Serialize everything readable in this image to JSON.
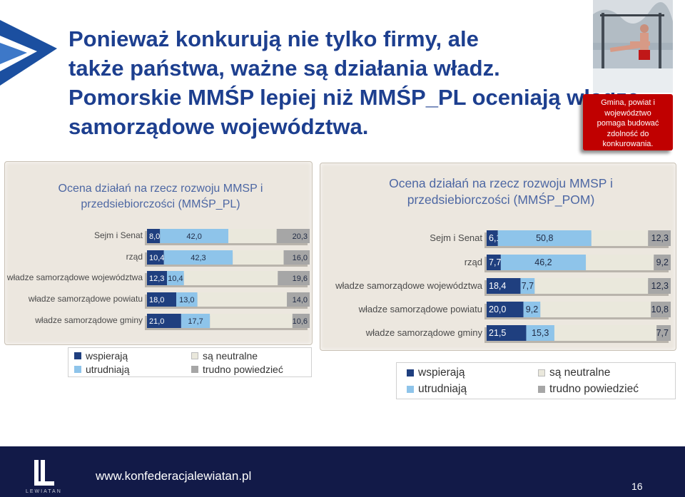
{
  "title_lines": [
    "Ponieważ konkurują nie tylko firmy, ale",
    "także państwa, ważne są działania władz.",
    "Pomorskie MMŚP lepiej niż MMŚP_PL oceniają władze",
    "samorządowe województwa."
  ],
  "note_lines": [
    "Gmina, powiat i",
    "województwo",
    "pomaga budować",
    "zdolność do",
    "konkurowania."
  ],
  "colors": {
    "title": "#1d3f8f",
    "wspieraja": "#1f3f7f",
    "utrudniaja": "#8ec4ea",
    "neutralne": "#eae8dc",
    "trudno": "#a6a6a6",
    "note_bg": "#c00000",
    "footer_bg": "#121a48"
  },
  "chart_data": [
    {
      "type": "bar",
      "stacked": true,
      "orientation": "horizontal",
      "title": "Ocena działań na rzecz rozwoju MMSP i przedsiebiorczości (MMŚP_PL)",
      "categories": [
        "Sejm i Senat",
        "rząd",
        "władze samorządowe województwa",
        "władze samorządowe powiatu",
        "władze samorządowe gminy"
      ],
      "series": [
        {
          "name": "wspierają",
          "values": [
            8.0,
            10.4,
            12.3,
            18.0,
            21.0
          ],
          "labels": [
            "8,0",
            "10,4",
            "12,3",
            "18,0",
            "21,0"
          ]
        },
        {
          "name": "utrudniają",
          "values": [
            42.0,
            42.3,
            10.4,
            13.0,
            17.7
          ],
          "labels": [
            "42,0",
            "42,3",
            "10,4",
            "13,0",
            "17,7"
          ]
        },
        {
          "name": "są neutralne",
          "values": [
            29.7,
            31.3,
            57.7,
            55.0,
            50.7
          ],
          "labels": [
            "",
            "",
            "",
            "",
            ""
          ]
        },
        {
          "name": "trudno powiedzieć",
          "values": [
            20.3,
            16.0,
            19.6,
            14.0,
            10.6
          ],
          "labels": [
            "20,3",
            "16,0",
            "19,6",
            "14,0",
            "10,6"
          ]
        }
      ],
      "legend": [
        "wspierają",
        "utrudniają",
        "są neutralne",
        "trudno powiedzieć"
      ],
      "legend_position": "bottom"
    },
    {
      "type": "bar",
      "stacked": true,
      "orientation": "horizontal",
      "title": "Ocena działań na rzecz rozwoju MMSP i przedsiebiorczości (MMŚP_POM)",
      "categories": [
        "Sejm i Senat",
        "rząd",
        "władze samorządowe województwa",
        "władze samorządowe powiatu",
        "władze samorządowe gminy"
      ],
      "series": [
        {
          "name": "wspierają",
          "values": [
            6.1,
            7.7,
            18.4,
            20.0,
            21.5
          ],
          "labels": [
            "6,1",
            "7,7",
            "18,4",
            "20,0",
            "21,5"
          ]
        },
        {
          "name": "utrudniają",
          "values": [
            50.8,
            46.2,
            7.7,
            9.2,
            15.3
          ],
          "labels": [
            "50,8",
            "46,2",
            "7,7",
            "9,2",
            "15,3"
          ]
        },
        {
          "name": "są neutralne",
          "values": [
            30.8,
            36.9,
            61.6,
            60.0,
            55.5
          ],
          "labels": [
            "",
            "",
            "",
            "",
            ""
          ]
        },
        {
          "name": "trudno powiedzieć",
          "values": [
            12.3,
            9.2,
            12.3,
            10.8,
            7.7
          ],
          "labels": [
            "12,3",
            "9,2",
            "12,3",
            "10,8",
            "7,7"
          ]
        }
      ],
      "legend": [
        "wspierają",
        "utrudniają",
        "są neutralne",
        "trudno powiedzieć"
      ],
      "legend_position": "bottom"
    }
  ],
  "footer": {
    "url": "www.konfederacjalewiatan.pl",
    "page": "16",
    "brand": "LEWIATAN"
  }
}
